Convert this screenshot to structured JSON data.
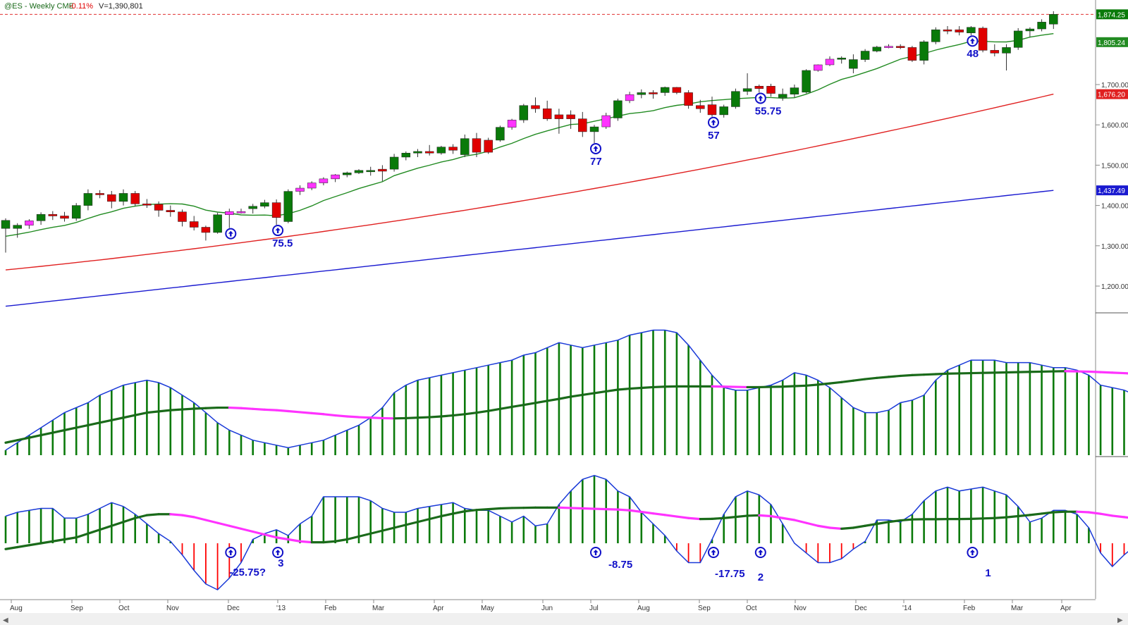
{
  "header": {
    "symbol": "@ES - Weekly  CME",
    "change": "-0.11%",
    "volume": "V=1,390,801"
  },
  "colors": {
    "up_candle": "#0a7a0a",
    "down_candle": "#e00000",
    "magenta_candle": "#ff33ff",
    "ma_fast": "#228b22",
    "ma_mid": "#e02020",
    "ma_slow": "#1a1ad0",
    "hist_pos": "#0a7a0a",
    "hist_neg": "#ff0000",
    "osc_line": "#1a3ad8",
    "signal_green": "#1a6a1a",
    "signal_magenta": "#ff33ff",
    "annotation": "#1010c8",
    "last_price_line": "#e03030"
  },
  "icons": {
    "signal": "up-arrow-circle-icon"
  },
  "chart_data": [
    {
      "type": "candlestick",
      "title": "@ES - Weekly  CME",
      "x_labels": [
        "Aug",
        "Sep",
        "Oct",
        "Nov",
        "Dec",
        "'13",
        "Feb",
        "Mar",
        "Apr",
        "May",
        "Jun",
        "Jul",
        "Aug",
        "Sep",
        "Oct",
        "Nov",
        "Dec",
        "'14",
        "Feb",
        "Mar",
        "Apr"
      ],
      "y_ticks": [
        "1,200.00",
        "1,300.00",
        "1,400.00",
        "1,500.00",
        "1,600.00",
        "1,700.00"
      ],
      "ylim": [
        1140,
        1900
      ],
      "price_tags": [
        {
          "label": "1,874.25",
          "value": 1874.25,
          "color": "#0a7a0a"
        },
        {
          "label": "1,805.24",
          "value": 1805.24,
          "color": "#228b22"
        },
        {
          "label": "1,676.20",
          "value": 1676.2,
          "color": "#e02020"
        },
        {
          "label": "1,437.49",
          "value": 1437.49,
          "color": "#1a1ad0"
        }
      ],
      "last_price": 1874.25,
      "candles": [
        {
          "o": 1363,
          "h": 1368,
          "l": 1283,
          "c": 1343,
          "t": "up"
        },
        {
          "o": 1343,
          "h": 1356,
          "l": 1320,
          "c": 1351,
          "t": "up"
        },
        {
          "o": 1351,
          "h": 1366,
          "l": 1342,
          "c": 1362,
          "t": "m"
        },
        {
          "o": 1362,
          "h": 1383,
          "l": 1352,
          "c": 1378,
          "t": "up"
        },
        {
          "o": 1378,
          "h": 1386,
          "l": 1364,
          "c": 1374,
          "t": "down"
        },
        {
          "o": 1374,
          "h": 1384,
          "l": 1360,
          "c": 1368,
          "t": "down"
        },
        {
          "o": 1368,
          "h": 1406,
          "l": 1362,
          "c": 1400,
          "t": "up"
        },
        {
          "o": 1400,
          "h": 1440,
          "l": 1388,
          "c": 1430,
          "t": "up"
        },
        {
          "o": 1430,
          "h": 1438,
          "l": 1418,
          "c": 1427,
          "t": "down"
        },
        {
          "o": 1427,
          "h": 1436,
          "l": 1393,
          "c": 1410,
          "t": "down"
        },
        {
          "o": 1410,
          "h": 1440,
          "l": 1400,
          "c": 1430,
          "t": "up"
        },
        {
          "o": 1430,
          "h": 1436,
          "l": 1398,
          "c": 1404,
          "t": "down"
        },
        {
          "o": 1404,
          "h": 1416,
          "l": 1394,
          "c": 1403,
          "t": "down"
        },
        {
          "o": 1403,
          "h": 1410,
          "l": 1372,
          "c": 1388,
          "t": "down"
        },
        {
          "o": 1388,
          "h": 1400,
          "l": 1372,
          "c": 1384,
          "t": "down"
        },
        {
          "o": 1384,
          "h": 1390,
          "l": 1348,
          "c": 1360,
          "t": "down"
        },
        {
          "o": 1360,
          "h": 1374,
          "l": 1338,
          "c": 1346,
          "t": "down"
        },
        {
          "o": 1346,
          "h": 1350,
          "l": 1313,
          "c": 1333,
          "t": "down"
        },
        {
          "o": 1333,
          "h": 1382,
          "l": 1330,
          "c": 1377,
          "t": "up"
        },
        {
          "o": 1377,
          "h": 1392,
          "l": 1344,
          "c": 1385,
          "t": "m"
        },
        {
          "o": 1385,
          "h": 1392,
          "l": 1380,
          "c": 1385,
          "t": "m"
        },
        {
          "o": 1392,
          "h": 1404,
          "l": 1380,
          "c": 1398,
          "t": "up"
        },
        {
          "o": 1398,
          "h": 1414,
          "l": 1393,
          "c": 1407,
          "t": "up"
        },
        {
          "o": 1407,
          "h": 1415,
          "l": 1352,
          "c": 1370,
          "t": "down"
        },
        {
          "o": 1360,
          "h": 1440,
          "l": 1356,
          "c": 1435,
          "t": "up"
        },
        {
          "o": 1435,
          "h": 1450,
          "l": 1426,
          "c": 1443,
          "t": "m"
        },
        {
          "o": 1443,
          "h": 1460,
          "l": 1438,
          "c": 1456,
          "t": "m"
        },
        {
          "o": 1456,
          "h": 1470,
          "l": 1450,
          "c": 1466,
          "t": "m"
        },
        {
          "o": 1466,
          "h": 1478,
          "l": 1458,
          "c": 1476,
          "t": "m"
        },
        {
          "o": 1476,
          "h": 1484,
          "l": 1470,
          "c": 1481,
          "t": "up"
        },
        {
          "o": 1481,
          "h": 1490,
          "l": 1478,
          "c": 1487,
          "t": "up"
        },
        {
          "o": 1487,
          "h": 1496,
          "l": 1474,
          "c": 1485,
          "t": "up"
        },
        {
          "o": 1485,
          "h": 1500,
          "l": 1460,
          "c": 1490,
          "t": "down"
        },
        {
          "o": 1490,
          "h": 1528,
          "l": 1484,
          "c": 1520,
          "t": "up"
        },
        {
          "o": 1520,
          "h": 1534,
          "l": 1512,
          "c": 1530,
          "t": "up"
        },
        {
          "o": 1530,
          "h": 1540,
          "l": 1520,
          "c": 1534,
          "t": "up"
        },
        {
          "o": 1534,
          "h": 1550,
          "l": 1524,
          "c": 1530,
          "t": "down"
        },
        {
          "o": 1530,
          "h": 1548,
          "l": 1526,
          "c": 1545,
          "t": "up"
        },
        {
          "o": 1545,
          "h": 1552,
          "l": 1528,
          "c": 1537,
          "t": "down"
        },
        {
          "o": 1526,
          "h": 1576,
          "l": 1520,
          "c": 1566,
          "t": "up"
        },
        {
          "o": 1566,
          "h": 1580,
          "l": 1520,
          "c": 1532,
          "t": "down"
        },
        {
          "o": 1532,
          "h": 1568,
          "l": 1528,
          "c": 1562,
          "t": "down"
        },
        {
          "o": 1562,
          "h": 1598,
          "l": 1558,
          "c": 1594,
          "t": "up"
        },
        {
          "o": 1594,
          "h": 1615,
          "l": 1588,
          "c": 1612,
          "t": "m"
        },
        {
          "o": 1612,
          "h": 1652,
          "l": 1605,
          "c": 1648,
          "t": "up"
        },
        {
          "o": 1648,
          "h": 1668,
          "l": 1630,
          "c": 1640,
          "t": "down"
        },
        {
          "o": 1640,
          "h": 1660,
          "l": 1610,
          "c": 1615,
          "t": "down"
        },
        {
          "o": 1615,
          "h": 1640,
          "l": 1578,
          "c": 1625,
          "t": "down"
        },
        {
          "o": 1625,
          "h": 1636,
          "l": 1590,
          "c": 1615,
          "t": "down"
        },
        {
          "o": 1615,
          "h": 1632,
          "l": 1570,
          "c": 1583,
          "t": "down"
        },
        {
          "o": 1583,
          "h": 1600,
          "l": 1555,
          "c": 1595,
          "t": "up"
        },
        {
          "o": 1595,
          "h": 1630,
          "l": 1590,
          "c": 1623,
          "t": "m"
        },
        {
          "o": 1617,
          "h": 1665,
          "l": 1610,
          "c": 1660,
          "t": "up"
        },
        {
          "o": 1660,
          "h": 1682,
          "l": 1654,
          "c": 1675,
          "t": "m"
        },
        {
          "o": 1675,
          "h": 1688,
          "l": 1666,
          "c": 1680,
          "t": "up"
        },
        {
          "o": 1680,
          "h": 1686,
          "l": 1665,
          "c": 1680,
          "t": "down"
        },
        {
          "o": 1680,
          "h": 1695,
          "l": 1672,
          "c": 1693,
          "t": "up"
        },
        {
          "o": 1693,
          "h": 1694,
          "l": 1676,
          "c": 1680,
          "t": "down"
        },
        {
          "o": 1680,
          "h": 1686,
          "l": 1640,
          "c": 1648,
          "t": "down"
        },
        {
          "o": 1648,
          "h": 1662,
          "l": 1630,
          "c": 1640,
          "t": "down"
        },
        {
          "o": 1650,
          "h": 1670,
          "l": 1620,
          "c": 1625,
          "t": "down"
        },
        {
          "o": 1625,
          "h": 1650,
          "l": 1618,
          "c": 1645,
          "t": "up"
        },
        {
          "o": 1645,
          "h": 1690,
          "l": 1640,
          "c": 1683,
          "t": "up"
        },
        {
          "o": 1683,
          "h": 1728,
          "l": 1674,
          "c": 1690,
          "t": "up"
        },
        {
          "o": 1690,
          "h": 1700,
          "l": 1680,
          "c": 1696,
          "t": "down"
        },
        {
          "o": 1696,
          "h": 1702,
          "l": 1670,
          "c": 1678,
          "t": "down"
        },
        {
          "o": 1668,
          "h": 1690,
          "l": 1660,
          "c": 1676,
          "t": "up"
        },
        {
          "o": 1676,
          "h": 1700,
          "l": 1668,
          "c": 1692,
          "t": "up"
        },
        {
          "o": 1681,
          "h": 1738,
          "l": 1678,
          "c": 1735,
          "t": "up"
        },
        {
          "o": 1735,
          "h": 1750,
          "l": 1732,
          "c": 1749,
          "t": "m"
        },
        {
          "o": 1749,
          "h": 1770,
          "l": 1746,
          "c": 1763,
          "t": "m"
        },
        {
          "o": 1763,
          "h": 1770,
          "l": 1752,
          "c": 1766,
          "t": "up"
        },
        {
          "o": 1740,
          "h": 1775,
          "l": 1728,
          "c": 1762,
          "t": "up"
        },
        {
          "o": 1762,
          "h": 1788,
          "l": 1756,
          "c": 1783,
          "t": "up"
        },
        {
          "o": 1783,
          "h": 1796,
          "l": 1780,
          "c": 1793,
          "t": "up"
        },
        {
          "o": 1793,
          "h": 1800,
          "l": 1790,
          "c": 1795,
          "t": "m"
        },
        {
          "o": 1795,
          "h": 1800,
          "l": 1788,
          "c": 1792,
          "t": "down"
        },
        {
          "o": 1792,
          "h": 1796,
          "l": 1756,
          "c": 1760,
          "t": "down"
        },
        {
          "o": 1760,
          "h": 1810,
          "l": 1750,
          "c": 1806,
          "t": "up"
        },
        {
          "o": 1806,
          "h": 1842,
          "l": 1800,
          "c": 1836,
          "t": "up"
        },
        {
          "o": 1836,
          "h": 1845,
          "l": 1825,
          "c": 1836,
          "t": "down"
        },
        {
          "o": 1836,
          "h": 1845,
          "l": 1822,
          "c": 1830,
          "t": "down"
        },
        {
          "o": 1828,
          "h": 1845,
          "l": 1822,
          "c": 1842,
          "t": "up"
        },
        {
          "o": 1840,
          "h": 1844,
          "l": 1780,
          "c": 1785,
          "t": "down"
        },
        {
          "o": 1785,
          "h": 1800,
          "l": 1770,
          "c": 1778,
          "t": "down"
        },
        {
          "o": 1778,
          "h": 1800,
          "l": 1735,
          "c": 1792,
          "t": "up"
        },
        {
          "o": 1792,
          "h": 1840,
          "l": 1786,
          "c": 1833,
          "t": "up"
        },
        {
          "o": 1833,
          "h": 1842,
          "l": 1818,
          "c": 1838,
          "t": "up"
        },
        {
          "o": 1838,
          "h": 1862,
          "l": 1832,
          "c": 1855,
          "t": "up"
        },
        {
          "o": 1850,
          "h": 1882,
          "l": 1838,
          "c": 1874.25,
          "t": "up"
        }
      ],
      "annotations": [
        "75.5",
        "77",
        "57",
        "55.75",
        "48"
      ]
    },
    {
      "type": "histogram",
      "series": [
        {
          "values": [
            2,
            5,
            8,
            11,
            14,
            17,
            19,
            21,
            24,
            26,
            28,
            29,
            30,
            29,
            27,
            24,
            21,
            17,
            13,
            10,
            8,
            6,
            5,
            4,
            3,
            4,
            5,
            6,
            8,
            10,
            12,
            15,
            19,
            25,
            28,
            30,
            31,
            32,
            33,
            34,
            35,
            36,
            37,
            38,
            40,
            41,
            43,
            45,
            44,
            43,
            44,
            45,
            46,
            48,
            49,
            50,
            50,
            49,
            44,
            38,
            32,
            27,
            26,
            26,
            27,
            28,
            30,
            33,
            32,
            30,
            27,
            23,
            19,
            17,
            17,
            18,
            21,
            22,
            24,
            30,
            34,
            36,
            38,
            38,
            38,
            37,
            37,
            37,
            36,
            35,
            35,
            34,
            32,
            28,
            27,
            26,
            24,
            25
          ]
        }
      ],
      "signal": [
        5,
        6,
        7,
        8,
        9,
        10,
        11,
        12,
        13,
        14,
        15,
        16,
        17,
        17.5,
        18,
        18.3,
        18.6,
        18.8,
        19,
        19,
        18.8,
        18.5,
        18.2,
        18,
        17.6,
        17.2,
        16.8,
        16.4,
        15.9,
        15.5,
        15.2,
        15,
        14.8,
        14.7,
        14.8,
        15,
        15.2,
        15.5,
        15.9,
        16.4,
        17,
        17.7,
        18.5,
        19.3,
        20.1,
        20.9,
        21.7,
        22.5,
        23.4,
        24.1,
        24.8,
        25.5,
        26.2,
        26.6,
        26.9,
        27.2,
        27.4,
        27.5,
        27.5,
        27.5,
        27.5,
        27.4,
        27.3,
        27.2,
        27.2,
        27.3,
        27.4,
        27.6,
        27.8,
        28.2,
        28.7,
        29.2,
        29.8,
        30.4,
        30.9,
        31.3,
        31.7,
        32,
        32.2,
        32.4,
        32.6,
        32.7,
        32.8,
        32.9,
        33,
        33.1,
        33.2,
        33.3,
        33.4,
        33.5,
        33.6,
        33.5,
        33.4,
        33.2,
        33,
        32.8,
        32.5,
        32.3
      ]
    },
    {
      "type": "histogram",
      "series": [
        {
          "values": [
            14,
            16,
            17,
            18,
            18,
            13,
            13,
            15,
            18,
            21,
            19,
            15,
            10,
            5,
            1,
            -6,
            -14,
            -21,
            -24,
            -18,
            -10,
            2,
            5,
            7,
            4,
            10,
            14,
            24,
            24,
            24,
            24,
            22,
            18,
            16,
            16,
            18,
            19,
            20,
            21,
            18,
            17,
            17,
            14,
            11,
            14,
            9,
            10,
            20,
            27,
            33,
            35,
            33,
            27,
            24,
            16,
            10,
            4,
            -4,
            -10,
            -10,
            2,
            15,
            24,
            27,
            25,
            20,
            10,
            0,
            -5,
            -10,
            -10,
            -8,
            -3,
            1,
            12,
            12,
            11,
            15,
            22,
            27,
            29,
            27,
            28,
            29,
            27,
            25,
            19,
            11,
            13,
            17,
            17,
            15,
            8,
            -5,
            -12,
            -6,
            -1,
            4,
            14,
            18
          ]
        }
      ],
      "signal": [
        -3,
        -2,
        -1,
        0,
        1,
        2,
        3,
        5,
        7,
        9,
        11,
        13,
        14.5,
        15,
        15,
        14.5,
        13.5,
        12,
        10.5,
        9,
        7.5,
        6,
        4.5,
        3,
        2,
        1,
        0.5,
        0.5,
        1,
        2,
        3.5,
        5,
        6.5,
        8,
        9.5,
        11,
        12.5,
        14,
        15.3,
        16.5,
        17.2,
        17.6,
        18,
        18.2,
        18.3,
        18.4,
        18.4,
        18.4,
        18.2,
        18,
        17.8,
        17.6,
        17.4,
        17,
        16.2,
        15.4,
        14.6,
        13.8,
        13,
        12.5,
        12.6,
        13,
        13.6,
        14.2,
        14.4,
        14,
        13,
        12,
        10.5,
        9,
        8,
        7.5,
        8,
        9,
        10,
        11,
        11.8,
        12.3,
        12.4,
        12.4,
        12.5,
        12.5,
        12.6,
        12.8,
        13,
        13.4,
        14,
        14.6,
        15.3,
        16,
        16.3,
        16.3,
        16,
        15.2,
        14.2,
        13.5,
        12.8,
        12.5
      ]
    }
  ],
  "indicators": {
    "hist2_annotations": [
      "-25.75?",
      "3",
      "-8.75",
      "-17.75",
      "2",
      "1"
    ]
  }
}
